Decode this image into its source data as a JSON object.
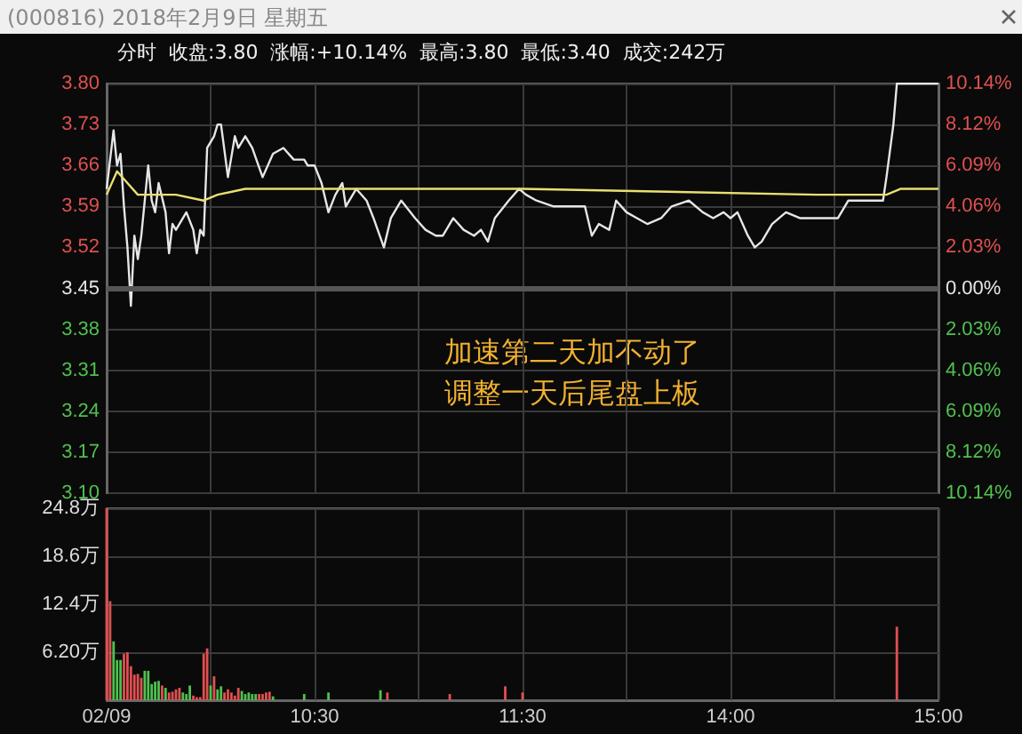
{
  "chart_data": [
    {
      "type": "line",
      "title": "(000816) 2018年2月9日 星期五",
      "subtitle": "分时  收盘:3.80  涨幅:+10.14%  最高:3.80  最低:3.40  成交:242万",
      "annotations": [
        "加速第二天加不动了",
        "调整一天后尾盘上板"
      ],
      "categories": [
        null,
        null,
        null,
        null,
        null,
        null,
        null,
        null,
        null,
        null,
        null,
        null,
        null,
        null,
        null,
        null,
        null,
        null,
        null,
        null,
        null,
        null,
        null,
        null,
        null,
        null,
        null,
        null,
        null,
        null,
        null,
        null,
        null,
        null,
        null,
        null,
        null,
        null,
        null,
        null,
        null,
        null,
        null,
        null,
        null,
        null,
        null,
        null,
        null,
        null,
        null,
        null,
        null,
        null,
        null,
        null,
        null,
        null,
        null,
        null,
        null,
        null,
        null,
        null,
        null,
        null,
        null,
        null,
        null,
        null,
        null,
        null,
        null,
        null,
        null,
        null,
        null,
        null,
        null,
        null,
        null,
        null,
        null,
        null,
        null,
        null,
        null,
        null,
        null,
        null,
        null,
        null,
        null,
        null,
        null,
        null,
        null,
        null,
        null,
        null,
        null,
        null,
        null,
        null,
        null,
        null,
        null,
        null,
        null,
        null,
        null,
        null,
        null,
        null,
        null,
        null,
        null,
        null,
        null,
        null,
        null,
        null,
        null,
        null,
        null,
        null,
        null,
        null,
        null,
        null,
        null,
        null,
        null,
        null,
        null,
        null,
        null,
        null,
        null,
        null,
        null,
        null,
        null,
        null,
        null,
        null,
        null,
        null,
        null,
        null,
        null,
        null,
        null,
        null,
        null,
        null,
        null,
        null,
        null,
        null,
        null,
        null,
        null,
        null,
        null,
        null,
        null,
        null,
        null,
        null,
        null,
        null,
        null,
        null,
        null,
        null,
        null,
        null,
        null,
        null,
        null,
        null,
        null,
        null,
        null,
        null,
        null,
        null,
        null,
        null,
        null,
        null,
        null,
        null,
        null,
        null,
        null,
        null,
        null,
        null,
        null,
        null,
        null,
        null,
        null,
        null,
        null,
        null,
        null,
        null,
        null,
        null,
        null,
        null,
        null,
        null,
        null,
        null,
        null,
        null,
        null,
        null,
        null,
        null,
        null,
        null,
        null,
        null,
        null,
        null,
        null,
        null,
        null,
        null,
        null,
        null,
        null,
        null,
        null,
        null,
        null
      ],
      "series": [
        {
          "color": "#e6e6e6",
          "values": [
            3.62,
            null,
            3.72,
            3.66,
            3.68,
            3.59,
            3.52,
            3.42,
            3.54,
            3.5,
            3.54,
            3.6,
            3.66,
            3.6,
            3.58,
            3.63,
            null,
            3.58,
            3.51,
            3.56,
            3.55,
            null,
            null,
            3.58,
            null,
            3.55,
            3.51,
            3.55,
            3.54,
            3.69,
            null,
            3.71,
            3.73,
            3.73,
            null,
            3.64,
            null,
            3.71,
            3.69,
            null,
            3.71,
            null,
            3.69,
            null,
            null,
            3.64,
            null,
            null,
            3.68,
            null,
            null,
            3.69,
            null,
            null,
            3.67,
            null,
            null,
            3.67,
            3.66,
            null,
            3.66,
            null,
            3.63,
            null,
            3.58,
            null,
            3.61,
            null,
            3.63,
            3.59,
            null,
            null,
            3.62,
            null,
            null,
            3.6,
            null,
            3.57,
            null,
            null,
            3.52,
            null,
            3.57,
            null,
            null,
            3.6,
            null,
            null,
            null,
            3.57,
            null,
            null,
            3.55,
            null,
            null,
            3.54,
            null,
            3.54,
            null,
            null,
            3.57,
            null,
            null,
            3.55,
            null,
            null,
            3.54,
            null,
            3.55,
            null,
            3.53,
            null,
            3.57,
            null,
            null,
            null,
            3.6,
            null,
            null,
            3.62,
            null,
            3.61,
            null,
            null,
            3.6,
            null,
            null,
            null,
            null,
            3.59,
            null,
            null,
            null,
            null,
            3.59,
            null,
            null,
            null,
            3.59,
            null,
            3.54,
            null,
            3.56,
            null,
            null,
            3.55,
            null,
            3.6,
            null,
            null,
            3.58,
            null,
            null,
            3.57,
            null,
            null,
            3.56,
            null,
            null,
            null,
            3.57,
            null,
            null,
            3.59,
            null,
            null,
            null,
            null,
            3.6,
            null,
            null,
            null,
            3.58,
            null,
            null,
            3.57,
            null,
            null,
            3.58,
            null,
            3.57,
            null,
            3.58,
            null,
            null,
            3.54,
            null,
            3.52,
            null,
            3.53,
            null,
            null,
            3.56,
            null,
            null,
            null,
            3.58,
            null,
            null,
            null,
            3.57,
            null,
            null,
            null,
            null,
            3.57,
            null,
            null,
            null,
            null,
            null,
            3.57,
            null,
            null,
            3.6,
            null,
            null,
            null,
            3.6,
            null,
            null,
            3.6,
            null,
            null,
            3.6,
            3.64,
            null,
            3.73,
            3.8,
            null,
            null,
            null,
            null,
            null,
            null,
            null,
            null,
            3.8,
            null,
            null,
            3.8
          ]
        },
        {
          "color": "#e8e070",
          "values": [
            3.61,
            null,
            null,
            3.65,
            null,
            null,
            3.63,
            null,
            null,
            3.61,
            null,
            null,
            null,
            null,
            null,
            null,
            null,
            null,
            null,
            null,
            3.61,
            null,
            null,
            null,
            null,
            null,
            null,
            null,
            3.6,
            null,
            null,
            null,
            3.61,
            null,
            null,
            null,
            null,
            null,
            null,
            null,
            3.62,
            null,
            null,
            null,
            null,
            null,
            null,
            null,
            null,
            null,
            null,
            null,
            null,
            null,
            null,
            null,
            null,
            null,
            null,
            null,
            3.62,
            null,
            null,
            null,
            null,
            null,
            null,
            null,
            null,
            null,
            null,
            null,
            null,
            null,
            null,
            null,
            null,
            null,
            null,
            null,
            null,
            null,
            null,
            null,
            null,
            null,
            null,
            null,
            null,
            null,
            null,
            null,
            null,
            null,
            null,
            null,
            null,
            null,
            null,
            null,
            null,
            null,
            null,
            null,
            null,
            null,
            null,
            null,
            null,
            null,
            null,
            null,
            null,
            null,
            null,
            null,
            null,
            null,
            null,
            null,
            3.62,
            null,
            null,
            null,
            null,
            null,
            null,
            null,
            null,
            null,
            null,
            null,
            null,
            null,
            null,
            null,
            null,
            null,
            null,
            null,
            null,
            null,
            null,
            null,
            null,
            null,
            null,
            null,
            null,
            null,
            null,
            null,
            null,
            null,
            null,
            null,
            null,
            null,
            null,
            null,
            null,
            null,
            null,
            null,
            null,
            null,
            null,
            null,
            null,
            null,
            null,
            null,
            null,
            null,
            null,
            null,
            null,
            null,
            null,
            null,
            null,
            null,
            null,
            null,
            null,
            null,
            null,
            null,
            null,
            null,
            null,
            null,
            null,
            null,
            null,
            null,
            null,
            null,
            null,
            null,
            null,
            null,
            null,
            null,
            null,
            3.61,
            null,
            null,
            null,
            null,
            null,
            null,
            null,
            null,
            null,
            null,
            null,
            null,
            null,
            null,
            null,
            null,
            null,
            null,
            null,
            3.61,
            null,
            null,
            null,
            3.62,
            null,
            null,
            null,
            null,
            null,
            null,
            null,
            null,
            null,
            null,
            3.62
          ]
        }
      ],
      "ylim": [
        3.1,
        3.8
      ],
      "yticks": [
        {
          "value": 3.1,
          "label": "3.10"
        },
        3.17,
        3.24,
        3.31,
        3.38,
        3.45,
        3.52,
        3.59,
        3.66,
        3.73,
        {
          "value": 3.8,
          "label": "3.80"
        }
      ],
      "y2lim": [
        -10.14,
        10.14
      ],
      "y2ticks": [
        {
          "value": -10.14,
          "label": "10.14%"
        },
        {
          "value": -8.12,
          "label": "8.12%"
        },
        {
          "value": -6.09,
          "label": "6.09%"
        },
        {
          "value": -4.06,
          "label": "4.06%"
        },
        {
          "value": -2.03,
          "label": "2.03%"
        },
        {
          "value": 0,
          "label": "0.00%"
        },
        {
          "value": 2.03,
          "label": "2.03%"
        },
        {
          "value": 4.06,
          "label": "4.06%"
        },
        {
          "value": 6.09,
          "label": "6.09%"
        },
        {
          "value": 8.12,
          "label": "8.12%"
        },
        {
          "value": 10.14,
          "label": "10.14%"
        }
      ],
      "ref_lines": [
        {
          "axis": "y",
          "value": 3.45,
          "color": "#555555"
        }
      ],
      "grid": true,
      "tick_labels": "y"
    },
    {
      "type": "bar",
      "categories": [
        "02/09",
        null,
        null,
        null,
        null,
        null,
        null,
        null,
        null,
        null,
        null,
        null,
        null,
        null,
        null,
        null,
        null,
        null,
        null,
        null,
        null,
        null,
        null,
        null,
        null,
        null,
        null,
        null,
        null,
        null,
        null,
        null,
        null,
        null,
        null,
        null,
        null,
        null,
        null,
        null,
        null,
        null,
        null,
        null,
        null,
        null,
        null,
        null,
        null,
        null,
        null,
        null,
        null,
        null,
        null,
        null,
        null,
        null,
        null,
        null,
        "10:30",
        null,
        null,
        null,
        null,
        null,
        null,
        null,
        null,
        null,
        null,
        null,
        null,
        null,
        null,
        null,
        null,
        null,
        null,
        null,
        null,
        null,
        null,
        null,
        null,
        null,
        null,
        null,
        null,
        null,
        null,
        null,
        null,
        null,
        null,
        null,
        null,
        null,
        null,
        null,
        null,
        null,
        null,
        null,
        null,
        null,
        null,
        null,
        null,
        null,
        null,
        null,
        null,
        null,
        null,
        null,
        null,
        null,
        null,
        null,
        "11:30",
        null,
        null,
        null,
        null,
        null,
        null,
        null,
        null,
        null,
        null,
        null,
        null,
        null,
        null,
        null,
        null,
        null,
        null,
        null,
        null,
        null,
        null,
        null,
        null,
        null,
        null,
        null,
        null,
        null,
        null,
        null,
        null,
        null,
        null,
        null,
        null,
        null,
        null,
        null,
        null,
        null,
        null,
        null,
        null,
        null,
        null,
        null,
        null,
        null,
        null,
        null,
        null,
        null,
        null,
        null,
        null,
        null,
        null,
        null,
        "14:00",
        null,
        null,
        null,
        null,
        null,
        null,
        null,
        null,
        null,
        null,
        null,
        null,
        null,
        null,
        null,
        null,
        null,
        null,
        null,
        null,
        null,
        null,
        null,
        null,
        null,
        null,
        null,
        null,
        null,
        null,
        null,
        null,
        null,
        null,
        null,
        null,
        null,
        null,
        null,
        null,
        null,
        null,
        null,
        null,
        null,
        null,
        null,
        null,
        null,
        null,
        null,
        null,
        null,
        null,
        null,
        null,
        null,
        null,
        null,
        "15:00"
      ],
      "values": [
        24.8,
        12.8,
        7.6,
        5.2,
        5.2,
        6.0,
        6.2,
        4.4,
        3.3,
        3.4,
        2.9,
        3.8,
        3.8,
        2.1,
        2.4,
        2.5,
        1.9,
        1.6,
        1.0,
        1.1,
        1.4,
        1.6,
        1.0,
        0.8,
        1.9,
        0.6,
        0.4,
        0.4,
        6.0,
        6.7,
        1.9,
        3.1,
        1.4,
        1.8,
        1.0,
        1.4,
        1.0,
        0.6,
        1.6,
        1.2,
        0.8,
        1.0,
        0.8,
        0.8,
        0.8,
        0.8,
        1.0,
        1.1,
        0.5,
        null,
        null,
        null,
        null,
        null,
        null,
        null,
        null,
        0.8,
        null,
        null,
        null,
        null,
        null,
        null,
        1.0,
        null,
        null,
        null,
        null,
        null,
        null,
        null,
        null,
        null,
        null,
        null,
        null,
        null,
        null,
        1.3,
        null,
        1.0,
        null,
        null,
        null,
        null,
        null,
        null,
        null,
        null,
        null,
        null,
        null,
        null,
        null,
        null,
        null,
        null,
        null,
        0.8,
        null,
        null,
        null,
        null,
        null,
        null,
        null,
        null,
        null,
        null,
        null,
        null,
        null,
        null,
        null,
        1.8,
        null,
        null,
        null,
        null,
        1.0,
        null,
        null,
        null,
        null,
        null,
        null,
        null,
        null,
        null,
        null,
        null,
        null,
        null,
        null,
        null,
        null,
        null,
        null,
        null,
        null,
        null,
        null,
        null,
        null,
        null,
        null,
        null,
        null,
        null,
        null,
        null,
        null,
        null,
        null,
        null,
        null,
        null,
        null,
        null,
        null,
        null,
        null,
        null,
        null,
        null,
        null,
        null,
        null,
        null,
        null,
        null,
        null,
        null,
        null,
        null,
        null,
        null,
        null,
        null,
        null,
        null,
        null,
        null,
        null,
        null,
        null,
        null,
        null,
        null,
        null,
        null,
        null,
        null,
        null,
        null,
        null,
        null,
        null,
        null,
        null,
        null,
        null,
        null,
        null,
        null,
        null,
        null,
        null,
        null,
        null,
        null,
        null,
        null,
        null,
        null,
        null,
        null,
        null,
        null,
        null,
        null,
        null,
        null,
        null,
        null,
        null,
        null,
        9.5,
        null,
        null,
        null,
        null,
        null,
        null,
        null,
        null,
        null,
        null,
        null,
        null
      ],
      "colors": [
        "#e05050",
        "#e05050",
        "#50c050",
        "#50c050",
        "#50c050",
        "#e05050",
        "#e05050",
        "#e05050",
        "#e05050",
        "#e05050",
        "#e05050",
        "#50c050",
        "#50c050",
        "#50c050",
        "#50c050",
        "#50c050",
        "#e05050",
        "#50c050",
        "#e05050",
        "#e05050",
        "#e05050",
        "#e05050",
        "#50c050",
        "#50c050",
        "#50c050",
        "#e05050",
        "#e05050",
        "#e05050",
        "#e05050",
        "#e05050",
        "#50c050",
        "#e05050",
        "#50c050",
        "#50c050",
        "#e05050",
        "#e05050",
        "#e05050",
        "#e05050",
        "#e05050",
        "#50c050",
        "#50c050",
        "#50c050",
        "#50c050",
        "#50c050",
        "#e05050",
        "#e05050",
        "#e05050",
        "#e05050",
        "#50c050",
        null,
        null,
        null,
        null,
        null,
        null,
        null,
        null,
        "#50c050",
        null,
        null,
        null,
        null,
        null,
        null,
        "#50c050",
        null,
        null,
        null,
        null,
        null,
        null,
        null,
        null,
        null,
        null,
        null,
        null,
        null,
        null,
        "#50c050",
        null,
        "#e05050",
        null,
        null,
        null,
        null,
        null,
        null,
        null,
        null,
        null,
        null,
        null,
        null,
        null,
        null,
        null,
        null,
        null,
        "#e05050",
        null,
        null,
        null,
        null,
        null,
        null,
        null,
        null,
        null,
        null,
        null,
        null,
        null,
        null,
        null,
        "#e05050",
        null,
        null,
        null,
        null,
        "#e05050",
        null,
        null,
        null,
        null,
        null,
        null,
        null,
        null,
        null,
        null,
        null,
        null,
        null,
        null,
        null,
        null,
        null,
        null,
        null,
        null,
        null,
        null,
        null,
        null,
        null,
        null,
        null,
        null,
        null,
        null,
        null,
        null,
        null,
        null,
        null,
        null,
        null,
        null,
        null,
        null,
        null,
        null,
        null,
        null,
        null,
        null,
        null,
        null,
        null,
        null,
        null,
        null,
        null,
        null,
        null,
        null,
        null,
        null,
        null,
        null,
        null,
        null,
        null,
        null,
        null,
        null,
        null,
        null,
        null,
        null,
        null,
        null,
        null,
        null,
        null,
        null,
        null,
        null,
        null,
        null,
        null,
        null,
        null,
        null,
        null,
        null,
        null,
        null,
        null,
        null,
        null,
        null,
        null,
        null,
        null,
        null,
        null,
        null,
        null,
        null,
        null,
        null,
        null,
        null,
        null,
        null,
        null,
        "#e05050",
        null,
        null,
        null,
        null,
        null,
        null,
        null,
        null,
        null,
        null,
        null,
        null
      ],
      "ylim": [
        0,
        24.8
      ],
      "yticks": [
        {
          "value": 0,
          "label": null
        },
        {
          "value": 6.2,
          "label": "6.20万"
        },
        {
          "value": 12.4,
          "label": "12.4万"
        },
        {
          "value": 18.6,
          "label": "18.6万"
        },
        {
          "value": 24.8,
          "label": "24.8万"
        }
      ],
      "grid": true
    }
  ]
}
